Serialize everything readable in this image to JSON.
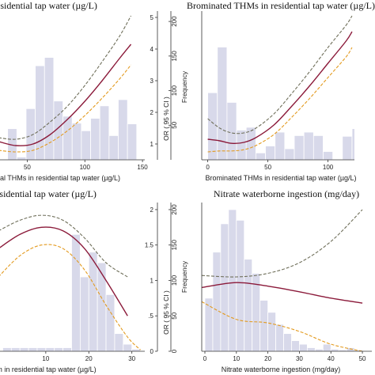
{
  "style": {
    "bar_color": "#d8d9ea",
    "bar_stroke": "#ffffff",
    "or_color": "#8b1a3a",
    "upper_ci_color": "#6f6f5a",
    "lower_ci_color": "#e39a1e",
    "axis_color": "#333333"
  },
  "chart_data": [
    {
      "type": "line",
      "title": "Total THMs in residential tap water (µg/L)",
      "xlabel": "Total THMs in residential tap water (µg/L)",
      "ylabel_right": "OR ( 95 % CI )",
      "ylabel_freq": "Frequency",
      "xlim": [
        25,
        152
      ],
      "xticks": [
        "50",
        "100",
        "150"
      ],
      "ylim_or": [
        0.5,
        5.2
      ],
      "or_ticks": [
        "1",
        "2",
        "3",
        "4",
        "5"
      ],
      "freq_lim": [
        0,
        215
      ],
      "freq_ticks": [
        "50",
        "100",
        "150",
        "200"
      ],
      "histogram": {
        "bin_start": 25,
        "bin_width": 8,
        "frequencies": [
          0,
          45,
          4,
          74,
          136,
          148,
          85,
          63,
          53,
          42,
          60,
          78,
          35,
          87,
          52
        ]
      },
      "series": [
        {
          "role": "upper",
          "x": [
            25,
            40,
            55,
            70,
            85,
            100,
            115,
            130,
            140
          ],
          "y": [
            1.2,
            1.15,
            1.3,
            1.7,
            2.2,
            2.85,
            3.6,
            4.4,
            5.05
          ]
        },
        {
          "role": "or",
          "x": [
            25,
            40,
            55,
            70,
            85,
            100,
            115,
            130,
            140
          ],
          "y": [
            1.08,
            0.95,
            1.0,
            1.3,
            1.78,
            2.35,
            3.0,
            3.7,
            4.15
          ]
        },
        {
          "role": "lower",
          "x": [
            25,
            40,
            55,
            70,
            85,
            100,
            115,
            130,
            140
          ],
          "y": [
            0.8,
            0.75,
            0.8,
            1.05,
            1.42,
            1.9,
            2.45,
            3.05,
            3.5
          ]
        }
      ]
    },
    {
      "type": "line",
      "title": "Brominated THMs in residential tap water (µg/L)",
      "xlabel": "Brominated THMs in residential tap water (µg/L)",
      "ylabel_right": "",
      "ylabel_freq": "",
      "xlim": [
        -5,
        122
      ],
      "xticks": [
        "0",
        "50",
        "100"
      ],
      "ylim_or": [
        0.5,
        5.2
      ],
      "or_ticks": [],
      "freq_lim": [
        0,
        215
      ],
      "freq_ticks": [],
      "histogram": {
        "bin_start": 0,
        "bin_width": 8,
        "frequencies": [
          97,
          163,
          83,
          43,
          47,
          10,
          20,
          40,
          16,
          35,
          40,
          35,
          12,
          0,
          34,
          45,
          55,
          55,
          58,
          68
        ]
      },
      "series": [
        {
          "role": "upper",
          "x": [
            0,
            10,
            20,
            30,
            40,
            55,
            70,
            85,
            100,
            115,
            120
          ],
          "y": [
            1.8,
            1.5,
            1.35,
            1.35,
            1.5,
            1.95,
            2.6,
            3.3,
            4.05,
            4.75,
            5.05
          ]
        },
        {
          "role": "or",
          "x": [
            0,
            10,
            20,
            30,
            40,
            55,
            70,
            85,
            100,
            115,
            120
          ],
          "y": [
            1.15,
            1.1,
            1.02,
            1.05,
            1.2,
            1.6,
            2.2,
            2.85,
            3.55,
            4.25,
            4.55
          ]
        },
        {
          "role": "lower",
          "x": [
            0,
            10,
            20,
            30,
            40,
            55,
            70,
            85,
            100,
            115,
            120
          ],
          "y": [
            0.75,
            0.78,
            0.78,
            0.82,
            0.95,
            1.3,
            1.85,
            2.45,
            3.1,
            3.75,
            4.05
          ]
        }
      ]
    },
    {
      "type": "line",
      "title": "Chloroform in residential tap water (µg/L)",
      "xlabel": "Chloroform in residential tap water (µg/L)",
      "ylabel_right": "OR ( 95 % CI )",
      "ylabel_freq": "Frequency",
      "xlim": [
        -1,
        33
      ],
      "xticks": [
        "10",
        "20",
        "30"
      ],
      "ylim_or": [
        0,
        2.1
      ],
      "or_ticks": [
        "0",
        ".5",
        "1",
        "1.5",
        "2"
      ],
      "freq_lim": [
        0,
        210
      ],
      "freq_ticks": [
        "0",
        "50",
        "100",
        "150",
        "200"
      ],
      "histogram": {
        "bin_start": 0,
        "bin_width": 2,
        "frequencies": [
          5,
          5,
          5,
          5,
          5,
          5,
          5,
          5,
          165,
          105,
          140,
          125,
          80,
          25,
          10,
          3
        ]
      },
      "series": [
        {
          "role": "upper",
          "x": [
            -1,
            4,
            9,
            14,
            19,
            24,
            29
          ],
          "y": [
            1.7,
            1.85,
            1.92,
            1.85,
            1.6,
            1.25,
            1.05
          ]
        },
        {
          "role": "or",
          "x": [
            -1,
            4,
            9,
            14,
            19,
            24,
            29
          ],
          "y": [
            1.45,
            1.65,
            1.75,
            1.7,
            1.45,
            1.0,
            0.5
          ]
        },
        {
          "role": "lower",
          "x": [
            -1,
            4,
            9,
            14,
            19,
            24,
            29,
            32
          ],
          "y": [
            1.05,
            1.35,
            1.5,
            1.45,
            1.15,
            0.65,
            0.2,
            0.02
          ]
        }
      ]
    },
    {
      "type": "line",
      "title": "Nitrate waterborne ingestion (mg/day)",
      "xlabel": "Nitrate waterborne ingestion (mg/day)",
      "ylabel_right": "",
      "ylabel_freq": "",
      "xlim": [
        -1,
        53
      ],
      "xticks": [
        "0",
        "10",
        "20",
        "30",
        "40",
        "50"
      ],
      "ylim_or": [
        0,
        2.1
      ],
      "or_ticks": [],
      "freq_lim": [
        0,
        210
      ],
      "freq_ticks": [],
      "histogram": {
        "bin_start": 0,
        "bin_width": 2.5,
        "frequencies": [
          75,
          140,
          180,
          200,
          185,
          130,
          110,
          72,
          55,
          38,
          25,
          15,
          10,
          5,
          3,
          10,
          3,
          2,
          5,
          2
        ]
      },
      "series": [
        {
          "role": "upper",
          "x": [
            -1,
            10,
            20,
            30,
            40,
            50
          ],
          "y": [
            1.07,
            1.05,
            1.1,
            1.25,
            1.55,
            2.0
          ]
        },
        {
          "role": "or",
          "x": [
            -1,
            10,
            20,
            30,
            40,
            50
          ],
          "y": [
            0.9,
            0.97,
            0.92,
            0.84,
            0.75,
            0.68
          ]
        },
        {
          "role": "lower",
          "x": [
            -1,
            10,
            20,
            30,
            40,
            50
          ],
          "y": [
            0.7,
            0.45,
            0.4,
            0.28,
            0.1,
            0.0
          ]
        }
      ]
    }
  ]
}
